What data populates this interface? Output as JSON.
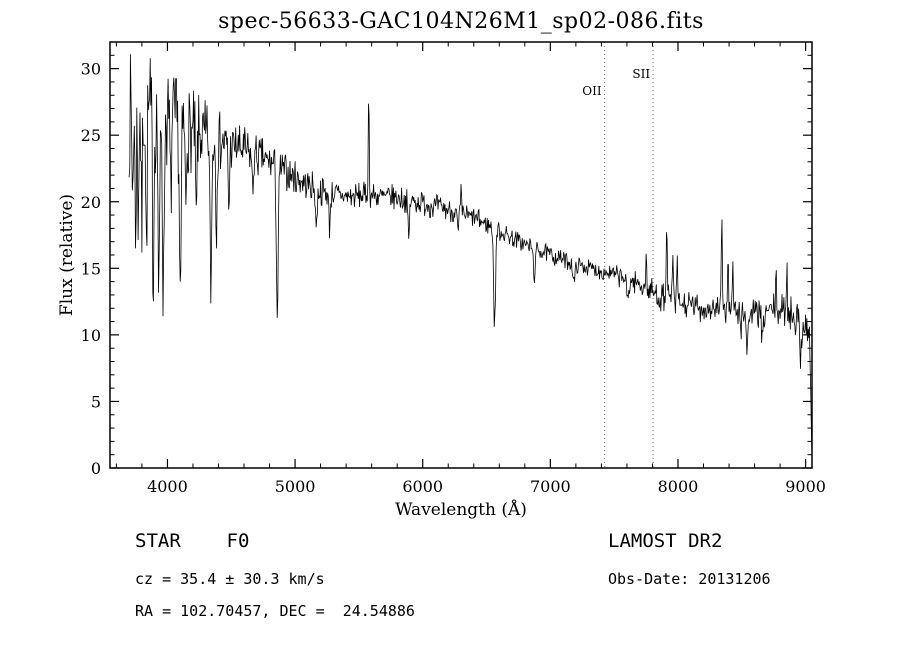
{
  "title": "spec-56633-GAC104N26M1_sp02-086.fits",
  "chart_data": {
    "type": "line",
    "title": "spec-56633-GAC104N26M1_sp02-086.fits",
    "xlabel": "Wavelength (Å)",
    "ylabel": "Flux (relative)",
    "xlim": [
      3550,
      9050
    ],
    "ylim": [
      0,
      32
    ],
    "x_major_ticks": [
      4000,
      5000,
      6000,
      7000,
      8000,
      9000
    ],
    "x_minor_step": 200,
    "y_major_ticks": [
      0,
      5,
      10,
      15,
      20,
      25,
      30
    ],
    "y_minor_step": 1,
    "grid": false,
    "line_color": "#000000",
    "marker_line_color": "#7a7a7a",
    "marker_lines": [
      {
        "label": "OII",
        "x": 7425,
        "label_y": 95
      },
      {
        "label": "SII",
        "x": 7805,
        "label_y": 78
      }
    ],
    "spectrum": {
      "seed": 7,
      "sample_step": 5,
      "x_start": 3700,
      "x_end": 9050,
      "noise_exponent": 1.5,
      "noise_scale": 1.15,
      "flux_clip": [
        0.05,
        31.6
      ],
      "edge_drop": {
        "start": 9030,
        "end": 9052
      },
      "continuum": [
        [
          3700,
          26.5
        ],
        [
          3760,
          27.2
        ],
        [
          3820,
          27.0
        ],
        [
          3900,
          26.6
        ],
        [
          4000,
          26.2
        ],
        [
          4100,
          25.8
        ],
        [
          4200,
          25.2
        ],
        [
          4300,
          24.8
        ],
        [
          4400,
          24.5
        ],
        [
          4600,
          23.8
        ],
        [
          4800,
          23.0
        ],
        [
          5000,
          21.8
        ],
        [
          5200,
          20.8
        ],
        [
          5400,
          20.4
        ],
        [
          5600,
          20.5
        ],
        [
          5800,
          20.3
        ],
        [
          6000,
          19.9
        ],
        [
          6200,
          19.4
        ],
        [
          6400,
          18.8
        ],
        [
          6600,
          17.8
        ],
        [
          6800,
          16.8
        ],
        [
          7000,
          16.0
        ],
        [
          7200,
          15.3
        ],
        [
          7400,
          14.8
        ],
        [
          7600,
          14.2
        ],
        [
          7700,
          13.8
        ],
        [
          7800,
          13.2
        ],
        [
          7900,
          12.7
        ],
        [
          8000,
          12.3
        ],
        [
          8200,
          12.0
        ],
        [
          8400,
          11.8
        ],
        [
          8600,
          11.6
        ],
        [
          8750,
          11.9
        ],
        [
          8900,
          11.6
        ],
        [
          9000,
          10.8
        ],
        [
          9050,
          9.5
        ]
      ],
      "noise_amplitude": [
        [
          3700,
          4.2
        ],
        [
          3900,
          3.8
        ],
        [
          4100,
          3.1
        ],
        [
          4300,
          2.5
        ],
        [
          4500,
          1.8
        ],
        [
          4800,
          1.35
        ],
        [
          5100,
          1.05
        ],
        [
          5500,
          0.9
        ],
        [
          6000,
          0.85
        ],
        [
          6500,
          0.7
        ],
        [
          7000,
          0.6
        ],
        [
          7300,
          0.55
        ],
        [
          7600,
          0.75
        ],
        [
          7900,
          1.0
        ],
        [
          8200,
          0.95
        ],
        [
          8500,
          0.95
        ],
        [
          8800,
          1.15
        ],
        [
          9000,
          1.5
        ],
        [
          9050,
          1.8
        ]
      ],
      "features": [
        [
          3727,
          5,
          -6
        ],
        [
          3750,
          5,
          -9
        ],
        [
          3771,
          5,
          -8
        ],
        [
          3798,
          5,
          -10
        ],
        [
          3835,
          5,
          -11
        ],
        [
          3889,
          6,
          -12
        ],
        [
          3933,
          6,
          -15
        ],
        [
          3968,
          6,
          -14
        ],
        [
          4026,
          5,
          -6
        ],
        [
          4101,
          7,
          -13
        ],
        [
          4144,
          5,
          -6
        ],
        [
          4226,
          5,
          -7
        ],
        [
          4340,
          7,
          -11
        ],
        [
          4383,
          5,
          -6
        ],
        [
          4481,
          5,
          -5
        ],
        [
          4668,
          5,
          -3
        ],
        [
          4861,
          7,
          -11.5
        ],
        [
          5167,
          6,
          -3
        ],
        [
          5270,
          6,
          -2.5
        ],
        [
          5890,
          6,
          -3
        ],
        [
          6277,
          6,
          -1.5
        ],
        [
          6563,
          7,
          -7.5
        ],
        [
          6875,
          8,
          -2
        ],
        [
          7186,
          8,
          -1.5
        ],
        [
          7605,
          9,
          -1.5
        ],
        [
          8498,
          7,
          -2
        ],
        [
          8542,
          7,
          -2.8
        ],
        [
          8662,
          7,
          -2.6
        ],
        [
          8958,
          6,
          -3.2
        ],
        [
          5577,
          4,
          7.5
        ],
        [
          6300,
          4,
          1.5
        ],
        [
          7750,
          4,
          2.2
        ],
        [
          7913,
          4,
          6.2
        ],
        [
          7960,
          4,
          3.6
        ],
        [
          7995,
          4,
          2.8
        ],
        [
          8344,
          4,
          6.6
        ],
        [
          8392,
          4,
          4.6
        ],
        [
          8430,
          4,
          3.4
        ],
        [
          8504,
          4,
          2.4
        ],
        [
          8768,
          4,
          2.0
        ],
        [
          8852,
          4,
          3.6
        ]
      ]
    }
  },
  "footer": {
    "left": {
      "class_line": "STAR    F0",
      "cz_line": "cz = 35.4 ± 30.3 km/s",
      "radec_line": "RA = 102.70457, DEC =  24.54886"
    },
    "right": {
      "survey_line": "LAMOST DR2",
      "obsdate_line": "Obs-Date: 20131206"
    }
  }
}
